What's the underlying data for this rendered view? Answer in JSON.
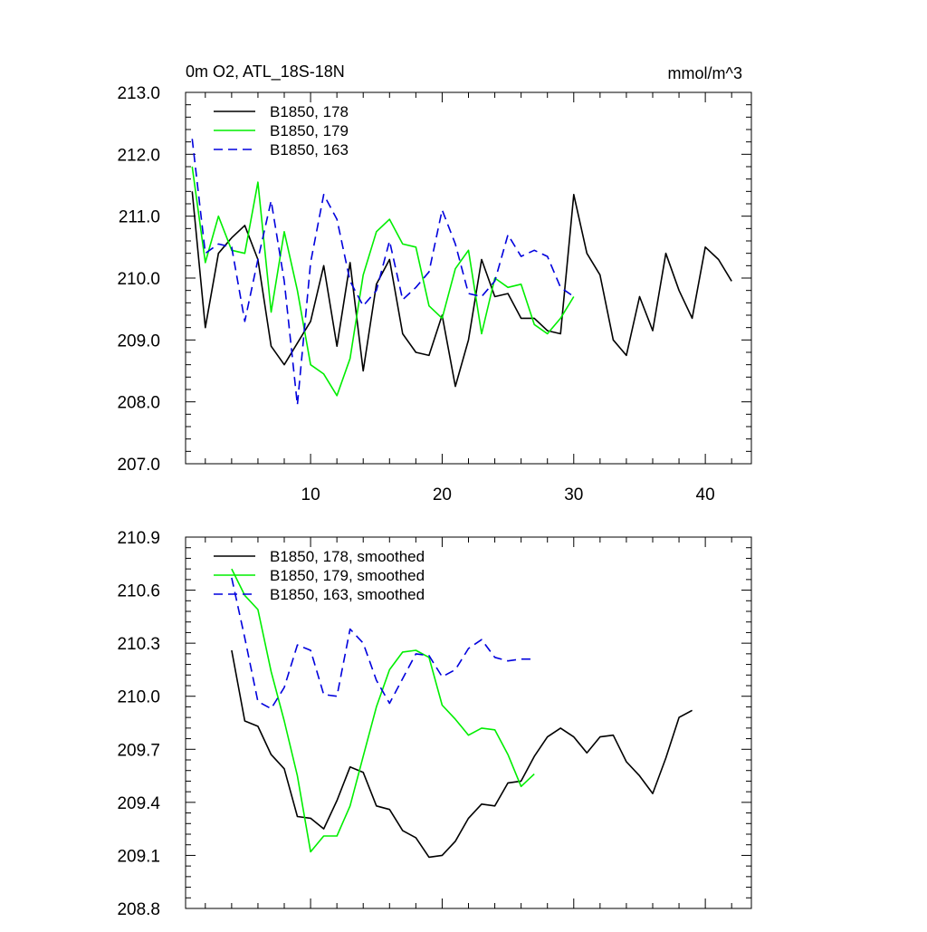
{
  "figure": {
    "title_left": "0m O2, ATL_18S-18N",
    "title_right": "mmol/m^3"
  },
  "colors": {
    "black": "#000000",
    "green": "#00ee00",
    "blue": "#0000dd"
  },
  "chart_data": [
    {
      "type": "line",
      "xlim": [
        0.5,
        43.5
      ],
      "ylim": [
        207.0,
        213.0
      ],
      "x_ticks": [
        10,
        20,
        30,
        40
      ],
      "x_tick_labels": [
        "10",
        "20",
        "30",
        "40"
      ],
      "y_ticks": [
        207.0,
        208.0,
        209.0,
        210.0,
        211.0,
        212.0,
        213.0
      ],
      "y_tick_labels": [
        "207.0",
        "208.0",
        "209.0",
        "210.0",
        "211.0",
        "212.0",
        "213.0"
      ],
      "legend_position": "top-left",
      "series": [
        {
          "name": "B1850, 178",
          "color": "#000000",
          "dash": "solid",
          "x": [
            1,
            2,
            3,
            4,
            5,
            6,
            7,
            8,
            9,
            10,
            11,
            12,
            13,
            14,
            15,
            16,
            17,
            18,
            19,
            20,
            21,
            22,
            23,
            24,
            25,
            26,
            27,
            28,
            29,
            30,
            31,
            32,
            33,
            34,
            35,
            36,
            37,
            38,
            39,
            40,
            41,
            42
          ],
          "values": [
            211.4,
            209.2,
            210.4,
            210.65,
            210.85,
            210.3,
            208.9,
            208.6,
            208.95,
            209.3,
            210.2,
            208.9,
            210.25,
            208.5,
            209.9,
            210.3,
            209.1,
            208.8,
            208.75,
            209.4,
            208.25,
            209.0,
            210.3,
            209.7,
            209.75,
            209.35,
            209.35,
            209.15,
            209.1,
            211.35,
            210.4,
            210.05,
            209.0,
            208.75,
            209.7,
            209.15,
            210.4,
            209.8,
            209.35,
            210.5,
            210.3,
            209.95
          ]
        },
        {
          "name": "B1850, 179",
          "color": "#00ee00",
          "dash": "solid",
          "x": [
            1,
            2,
            3,
            4,
            5,
            6,
            7,
            8,
            9,
            10,
            11,
            12,
            13,
            14,
            15,
            16,
            17,
            18,
            19,
            20,
            21,
            22,
            23,
            24,
            25,
            26,
            27,
            28,
            29,
            30
          ],
          "values": [
            211.8,
            210.25,
            211.0,
            210.45,
            210.4,
            211.55,
            209.45,
            210.75,
            209.8,
            208.6,
            208.45,
            208.1,
            208.7,
            210.05,
            210.75,
            210.95,
            210.55,
            210.5,
            209.55,
            209.35,
            210.15,
            210.45,
            209.1,
            210.0,
            209.85,
            209.9,
            209.25,
            209.1,
            209.35,
            209.7
          ]
        },
        {
          "name": "B1850, 163",
          "color": "#0000dd",
          "dash": "dashed",
          "x": [
            1,
            2,
            3,
            4,
            5,
            6,
            7,
            8,
            9,
            10,
            11,
            12,
            13,
            14,
            15,
            16,
            17,
            18,
            19,
            20,
            21,
            22,
            23,
            24,
            25,
            26,
            27,
            28,
            29,
            30
          ],
          "values": [
            212.25,
            210.4,
            210.55,
            210.5,
            209.3,
            210.3,
            211.25,
            209.95,
            207.95,
            210.25,
            211.35,
            210.95,
            209.95,
            209.55,
            209.8,
            210.6,
            209.65,
            209.85,
            210.1,
            211.1,
            210.55,
            209.75,
            209.7,
            209.95,
            210.7,
            210.35,
            210.45,
            210.35,
            209.85,
            209.7
          ]
        }
      ]
    },
    {
      "type": "line",
      "xlim": [
        0.5,
        43.5
      ],
      "ylim": [
        208.8,
        210.9
      ],
      "x_ticks": [
        10,
        20,
        30,
        40
      ],
      "x_tick_labels": [],
      "y_ticks": [
        208.8,
        209.1,
        209.4,
        209.7,
        210.0,
        210.3,
        210.6,
        210.9
      ],
      "y_tick_labels": [
        "208.8",
        "209.1",
        "209.4",
        "209.7",
        "210.0",
        "210.3",
        "210.6",
        "210.9"
      ],
      "legend_position": "top-left",
      "series": [
        {
          "name": "B1850, 178, smoothed",
          "color": "#000000",
          "dash": "solid",
          "x": [
            4,
            5,
            6,
            7,
            8,
            9,
            10,
            11,
            12,
            13,
            14,
            15,
            16,
            17,
            18,
            19,
            20,
            21,
            22,
            23,
            24,
            25,
            26,
            27,
            28,
            29,
            30,
            31,
            32,
            33,
            34,
            35,
            36,
            37,
            38,
            39
          ],
          "values": [
            210.26,
            209.86,
            209.83,
            209.67,
            209.59,
            209.32,
            209.31,
            209.25,
            209.41,
            209.6,
            209.57,
            209.38,
            209.36,
            209.24,
            209.2,
            209.09,
            209.1,
            209.18,
            209.31,
            209.39,
            209.38,
            209.51,
            209.52,
            209.66,
            209.77,
            209.82,
            209.77,
            209.68,
            209.77,
            209.78,
            209.63,
            209.55,
            209.45,
            209.65,
            209.88,
            209.92
          ]
        },
        {
          "name": "B1850, 179, smoothed",
          "color": "#00ee00",
          "dash": "solid",
          "x": [
            4,
            5,
            6,
            7,
            8,
            9,
            10,
            11,
            12,
            13,
            14,
            15,
            16,
            17,
            18,
            19,
            20,
            21,
            22,
            23,
            24,
            25,
            26,
            27
          ],
          "values": [
            210.72,
            210.57,
            210.49,
            210.14,
            209.86,
            209.55,
            209.12,
            209.21,
            209.21,
            209.38,
            209.66,
            209.94,
            210.15,
            210.25,
            210.26,
            210.22,
            209.95,
            209.87,
            209.78,
            209.82,
            209.81,
            209.67,
            209.49,
            209.56
          ]
        },
        {
          "name": "B1850, 163, smoothed",
          "color": "#0000dd",
          "dash": "dashed",
          "x": [
            4,
            5,
            6,
            7,
            8,
            9,
            10,
            11,
            12,
            13,
            14,
            15,
            16,
            17,
            18,
            19,
            20,
            21,
            22,
            23,
            24,
            25,
            26,
            27
          ],
          "values": [
            210.67,
            210.33,
            209.97,
            209.93,
            210.05,
            210.29,
            210.26,
            210.01,
            210.0,
            210.38,
            210.3,
            210.09,
            209.96,
            210.1,
            210.24,
            210.23,
            210.11,
            210.15,
            210.27,
            210.32,
            210.22,
            210.2,
            210.21,
            210.21
          ]
        }
      ]
    }
  ]
}
